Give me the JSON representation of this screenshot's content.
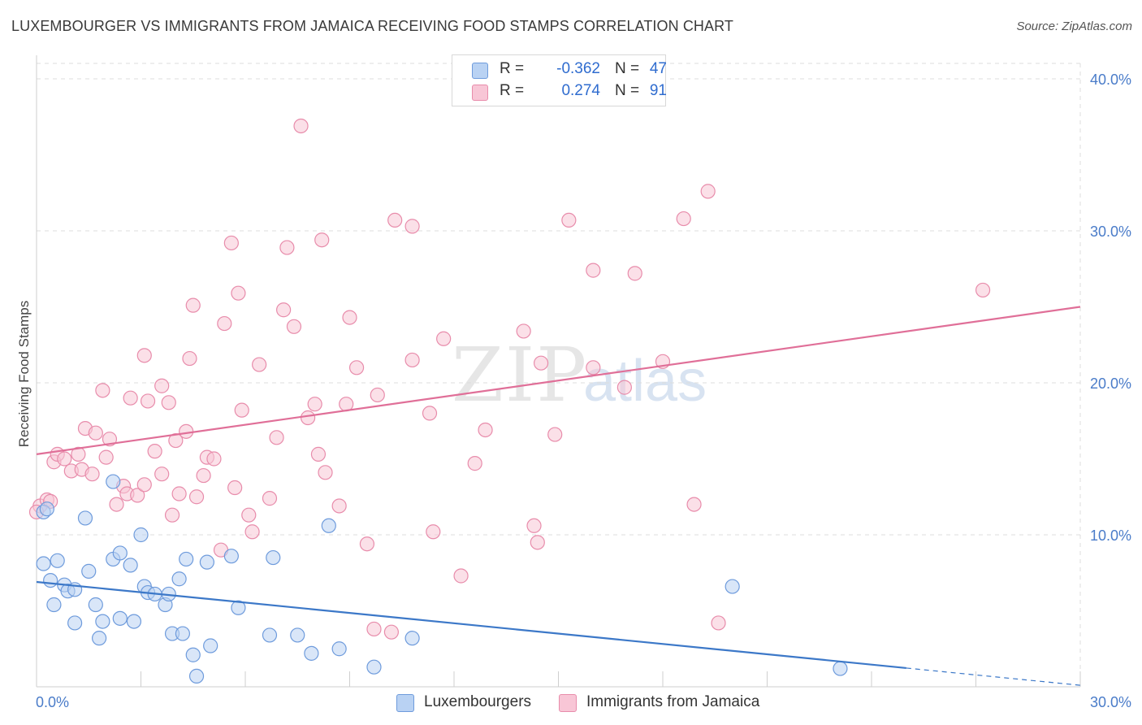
{
  "title": "LUXEMBOURGER VS IMMIGRANTS FROM JAMAICA RECEIVING FOOD STAMPS CORRELATION CHART",
  "source": "Source: ZipAtlas.com",
  "watermark": {
    "zip": "ZIP",
    "atlas": "atlas"
  },
  "legend_top": {
    "series": [
      {
        "r_label": "R =",
        "r_value": "-0.362",
        "n_label": "N =",
        "n_value": "47"
      },
      {
        "r_label": "R =",
        "r_value": "0.274",
        "n_label": "N =",
        "n_value": "91"
      }
    ]
  },
  "legend_bottom": [
    "Luxembourgers",
    "Immigrants from Jamaica"
  ],
  "colors": {
    "lux_fill": "#b9d2f3",
    "lux_stroke": "#6e9bdc",
    "lux_line": "#3c78c8",
    "jam_fill": "#f8c6d6",
    "jam_stroke": "#e88cab",
    "jam_line": "#e06f98",
    "grid": "#dcdcdc",
    "tick_text": "#4a7cc9"
  },
  "chart_data": {
    "type": "scatter",
    "title": "LUXEMBOURGER VS IMMIGRANTS FROM JAMAICA RECEIVING FOOD STAMPS CORRELATION CHART",
    "xlabel": "",
    "ylabel": "Receiving Food Stamps",
    "xlim": [
      0,
      30
    ],
    "ylim": [
      0,
      40
    ],
    "x_tick_labels": [
      "0.0%",
      "30.0%"
    ],
    "y_ticks": [
      10,
      20,
      30,
      40
    ],
    "y_tick_labels": [
      "10.0%",
      "20.0%",
      "30.0%",
      "40.0%"
    ],
    "grid": true,
    "legend_placement": "top-center",
    "series": [
      {
        "name": "Luxembourgers",
        "trend": {
          "x0": 0,
          "y0": 6.9,
          "x1": 30,
          "y1": 0.1,
          "solid_until_x": 25
        },
        "points": [
          [
            0.2,
            11.5
          ],
          [
            0.2,
            8.1
          ],
          [
            0.4,
            7.0
          ],
          [
            0.5,
            5.4
          ],
          [
            0.6,
            8.3
          ],
          [
            0.8,
            6.7
          ],
          [
            0.9,
            6.3
          ],
          [
            1.1,
            4.2
          ],
          [
            1.1,
            6.4
          ],
          [
            1.4,
            11.1
          ],
          [
            1.5,
            7.6
          ],
          [
            1.7,
            5.4
          ],
          [
            1.8,
            3.2
          ],
          [
            1.9,
            4.3
          ],
          [
            2.2,
            13.5
          ],
          [
            2.2,
            8.4
          ],
          [
            2.4,
            8.8
          ],
          [
            2.4,
            4.5
          ],
          [
            2.7,
            8.0
          ],
          [
            2.8,
            4.3
          ],
          [
            3.0,
            10.0
          ],
          [
            3.1,
            6.6
          ],
          [
            3.2,
            6.2
          ],
          [
            3.4,
            6.1
          ],
          [
            3.7,
            5.4
          ],
          [
            3.8,
            6.1
          ],
          [
            3.9,
            3.5
          ],
          [
            4.1,
            7.1
          ],
          [
            4.2,
            3.5
          ],
          [
            4.3,
            8.4
          ],
          [
            4.5,
            2.1
          ],
          [
            4.6,
            0.7
          ],
          [
            4.9,
            8.2
          ],
          [
            5.0,
            2.7
          ],
          [
            5.6,
            8.6
          ],
          [
            5.8,
            5.2
          ],
          [
            6.7,
            3.4
          ],
          [
            6.8,
            8.5
          ],
          [
            7.5,
            3.4
          ],
          [
            7.9,
            2.2
          ],
          [
            8.4,
            10.6
          ],
          [
            8.7,
            2.5
          ],
          [
            9.7,
            1.3
          ],
          [
            10.8,
            3.2
          ],
          [
            20.0,
            6.6
          ],
          [
            23.1,
            1.2
          ],
          [
            0.3,
            11.7
          ]
        ]
      },
      {
        "name": "Immigrants from Jamaica",
        "trend": {
          "x0": 0,
          "y0": 15.3,
          "x1": 30,
          "y1": 25.0
        },
        "points": [
          [
            0.1,
            11.9
          ],
          [
            0.3,
            12.3
          ],
          [
            0.5,
            14.8
          ],
          [
            0.6,
            15.3
          ],
          [
            0.8,
            15.0
          ],
          [
            1.0,
            14.2
          ],
          [
            1.2,
            15.3
          ],
          [
            1.3,
            14.3
          ],
          [
            1.4,
            17.0
          ],
          [
            1.6,
            14.0
          ],
          [
            1.7,
            16.7
          ],
          [
            1.9,
            19.5
          ],
          [
            2.0,
            15.1
          ],
          [
            2.1,
            16.3
          ],
          [
            2.3,
            12.0
          ],
          [
            2.5,
            13.2
          ],
          [
            2.6,
            12.7
          ],
          [
            2.7,
            19.0
          ],
          [
            2.9,
            12.6
          ],
          [
            3.1,
            13.3
          ],
          [
            3.1,
            21.8
          ],
          [
            3.2,
            18.8
          ],
          [
            3.4,
            15.5
          ],
          [
            3.6,
            14.0
          ],
          [
            3.6,
            19.8
          ],
          [
            3.8,
            18.7
          ],
          [
            3.9,
            11.3
          ],
          [
            4.0,
            16.2
          ],
          [
            4.1,
            12.7
          ],
          [
            4.3,
            16.8
          ],
          [
            4.4,
            21.6
          ],
          [
            4.5,
            25.1
          ],
          [
            4.6,
            12.5
          ],
          [
            4.8,
            13.9
          ],
          [
            4.9,
            15.1
          ],
          [
            5.1,
            15.0
          ],
          [
            5.3,
            9.0
          ],
          [
            5.4,
            23.9
          ],
          [
            5.6,
            29.2
          ],
          [
            5.7,
            13.1
          ],
          [
            5.8,
            25.9
          ],
          [
            5.9,
            18.2
          ],
          [
            6.1,
            11.3
          ],
          [
            6.2,
            10.2
          ],
          [
            6.4,
            21.2
          ],
          [
            6.7,
            12.4
          ],
          [
            6.9,
            16.4
          ],
          [
            7.1,
            24.8
          ],
          [
            7.2,
            28.9
          ],
          [
            7.4,
            23.7
          ],
          [
            7.6,
            36.9
          ],
          [
            7.8,
            17.7
          ],
          [
            8.0,
            18.6
          ],
          [
            8.1,
            15.3
          ],
          [
            8.2,
            29.4
          ],
          [
            8.3,
            14.1
          ],
          [
            8.7,
            11.9
          ],
          [
            8.9,
            18.6
          ],
          [
            9.0,
            24.3
          ],
          [
            9.2,
            21.0
          ],
          [
            9.5,
            9.4
          ],
          [
            9.7,
            3.8
          ],
          [
            9.8,
            19.2
          ],
          [
            10.2,
            3.6
          ],
          [
            10.3,
            30.7
          ],
          [
            10.8,
            30.3
          ],
          [
            10.8,
            21.5
          ],
          [
            11.3,
            18.0
          ],
          [
            11.4,
            10.2
          ],
          [
            11.7,
            22.9
          ],
          [
            12.2,
            7.3
          ],
          [
            12.6,
            14.7
          ],
          [
            12.9,
            16.9
          ],
          [
            14.0,
            23.4
          ],
          [
            14.3,
            10.6
          ],
          [
            14.4,
            9.5
          ],
          [
            14.5,
            21.3
          ],
          [
            14.9,
            16.6
          ],
          [
            15.3,
            30.7
          ],
          [
            16.0,
            21.0
          ],
          [
            16.0,
            27.4
          ],
          [
            16.9,
            19.7
          ],
          [
            17.2,
            27.2
          ],
          [
            18.0,
            21.4
          ],
          [
            18.6,
            30.8
          ],
          [
            18.9,
            12.0
          ],
          [
            19.3,
            32.6
          ],
          [
            19.6,
            4.2
          ],
          [
            27.2,
            26.1
          ],
          [
            0.0,
            11.5
          ],
          [
            0.4,
            12.2
          ]
        ]
      }
    ]
  }
}
